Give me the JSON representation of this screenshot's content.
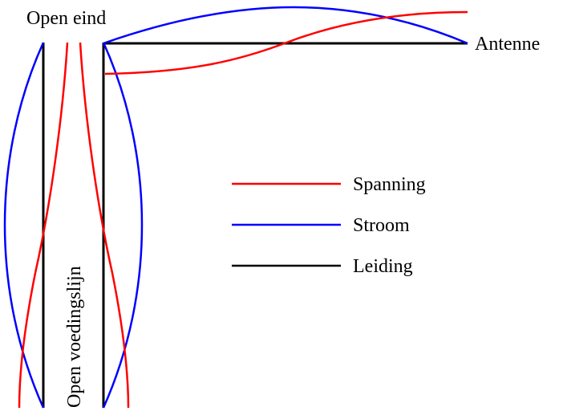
{
  "labels": {
    "open_end": "Open eind",
    "antenna": "Antenne",
    "feed_line": "Open voedingslijn"
  },
  "legend": [
    {
      "key": "voltage",
      "label": "Spanning",
      "color": "#ff0000"
    },
    {
      "key": "current",
      "label": "Stroom",
      "color": "#0000ff"
    },
    {
      "key": "line",
      "label": "Leiding",
      "color": "#000000"
    }
  ],
  "colors": {
    "voltage": "#ff0000",
    "current": "#0000ff",
    "line": "#000000",
    "background": "#ffffff"
  }
}
